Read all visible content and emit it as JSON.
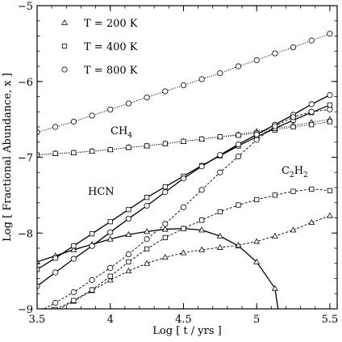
{
  "chart_data": {
    "type": "line",
    "xlabel": "Log [ t / yrs ]",
    "ylabel": "Log [ Fractional Abundance, x ]",
    "xlim": [
      3.5,
      5.55
    ],
    "ylim": [
      -9,
      -5
    ],
    "xticks": [
      3.5,
      4,
      4.5,
      5,
      5.5
    ],
    "xtick_labels": [
      "3.5",
      "4",
      "4.5",
      "5",
      "5.5"
    ],
    "yticks": [
      -9,
      -8,
      -7,
      -6,
      -5
    ],
    "ytick_labels": [
      "−9",
      "−8",
      "−7",
      "−6",
      "−5"
    ],
    "legend": {
      "placement": "top-left",
      "entries": [
        {
          "marker": "triangle",
          "label": "T = 200 K"
        },
        {
          "marker": "square",
          "label": "T = 400 K"
        },
        {
          "marker": "circle",
          "label": "T = 800 K"
        }
      ]
    },
    "annotations": [
      {
        "base": "CH",
        "sub": "4",
        "x": 3.51,
        "y": -6.78
      },
      {
        "base": "HCN",
        "sub": "",
        "x": 3.88,
        "y": -7.55
      },
      {
        "base": "C",
        "sub": "2",
        "base2": "H",
        "sub2": "2",
        "x": 5.18,
        "y": -7.35
      }
    ],
    "series": [
      {
        "molecule": "CH4",
        "temperature": "200 K",
        "marker": "triangle",
        "style": "dotted",
        "x": [
          3.5,
          3.625,
          3.75,
          3.875,
          4.0,
          4.125,
          4.25,
          4.375,
          4.5,
          4.625,
          4.75,
          4.875,
          5.0,
          5.125,
          5.25,
          5.375,
          5.5
        ],
        "y": [
          -6.97,
          -6.95,
          -6.94,
          -6.92,
          -6.9,
          -6.87,
          -6.85,
          -6.82,
          -6.79,
          -6.76,
          -6.73,
          -6.7,
          -6.66,
          -6.62,
          -6.58,
          -6.54,
          -6.5
        ]
      },
      {
        "molecule": "CH4",
        "temperature": "400 K",
        "marker": "square",
        "style": "dotted",
        "x": [
          3.5,
          3.625,
          3.75,
          3.875,
          4.0,
          4.125,
          4.25,
          4.375,
          4.5,
          4.625,
          4.75,
          4.875,
          5.0,
          5.125,
          5.25,
          5.375,
          5.5
        ],
        "y": [
          -6.97,
          -6.95,
          -6.94,
          -6.92,
          -6.9,
          -6.87,
          -6.85,
          -6.82,
          -6.79,
          -6.76,
          -6.73,
          -6.71,
          -6.68,
          -6.64,
          -6.6,
          -6.57,
          -6.53
        ]
      },
      {
        "molecule": "CH4",
        "temperature": "800 K",
        "marker": "circle",
        "style": "dotted",
        "x": [
          3.5,
          3.625,
          3.75,
          3.875,
          4.0,
          4.125,
          4.25,
          4.375,
          4.5,
          4.625,
          4.75,
          4.875,
          5.0,
          5.125,
          5.25,
          5.375,
          5.5
        ],
        "y": [
          -6.67,
          -6.6,
          -6.53,
          -6.45,
          -6.37,
          -6.29,
          -6.21,
          -6.13,
          -6.05,
          -5.97,
          -5.89,
          -5.8,
          -5.72,
          -5.63,
          -5.55,
          -5.46,
          -5.37
        ]
      },
      {
        "molecule": "HCN",
        "temperature": "200 K",
        "marker": "triangle",
        "style": "solid",
        "x": [
          3.5,
          3.625,
          3.75,
          3.875,
          4.0,
          4.125,
          4.25,
          4.375,
          4.5,
          4.625,
          4.75,
          4.875,
          5.0,
          5.125
        ],
        "y": [
          -8.38,
          -8.3,
          -8.22,
          -8.15,
          -8.08,
          -8.02,
          -7.98,
          -7.95,
          -7.94,
          -7.96,
          -8.04,
          -8.17,
          -8.38,
          -8.73
        ]
      },
      {
        "molecule": "HCN",
        "temperature": "400 K",
        "marker": "square",
        "style": "solid",
        "x": [
          3.5,
          3.625,
          3.75,
          3.875,
          4.0,
          4.125,
          4.25,
          4.375,
          4.5,
          4.625,
          4.75,
          4.875,
          5.0,
          5.125,
          5.25,
          5.375,
          5.5
        ],
        "y": [
          -8.48,
          -8.33,
          -8.17,
          -8.01,
          -7.85,
          -7.69,
          -7.53,
          -7.39,
          -7.25,
          -7.11,
          -6.98,
          -6.85,
          -6.73,
          -6.62,
          -6.51,
          -6.41,
          -6.31
        ]
      },
      {
        "molecule": "HCN",
        "temperature": "800 K",
        "marker": "circle",
        "style": "solid",
        "x": [
          3.5,
          3.625,
          3.75,
          3.875,
          4.0,
          4.125,
          4.25,
          4.375,
          4.5,
          4.625,
          4.75,
          4.875,
          5.0,
          5.125,
          5.25,
          5.375,
          5.5
        ],
        "y": [
          -8.7,
          -8.52,
          -8.34,
          -8.17,
          -7.99,
          -7.81,
          -7.64,
          -7.46,
          -7.28,
          -7.12,
          -6.97,
          -6.83,
          -6.7,
          -6.57,
          -6.44,
          -6.3,
          -6.18
        ]
      },
      {
        "molecule": "C2H2",
        "temperature": "200 K",
        "marker": "triangle",
        "style": "dashed",
        "x": [
          3.5,
          3.625,
          3.75,
          3.875,
          4.0,
          4.125,
          4.25,
          4.375,
          4.5,
          4.625,
          4.75,
          4.875,
          5.0,
          5.125,
          5.25,
          5.375,
          5.5
        ],
        "y": [
          -9.15,
          -9.03,
          -8.9,
          -8.76,
          -8.62,
          -8.5,
          -8.4,
          -8.32,
          -8.26,
          -8.22,
          -8.19,
          -8.16,
          -8.11,
          -8.04,
          -7.96,
          -7.86,
          -7.77
        ]
      },
      {
        "molecule": "C2H2",
        "temperature": "400 K",
        "marker": "square",
        "style": "dashed",
        "x": [
          3.5,
          3.625,
          3.75,
          3.875,
          4.0,
          4.125,
          4.25,
          4.375,
          4.5,
          4.625,
          4.75,
          4.875,
          5.0,
          5.125,
          5.25,
          5.375,
          5.5
        ],
        "y": [
          -9.1,
          -9.01,
          -8.89,
          -8.75,
          -8.57,
          -8.38,
          -8.21,
          -8.06,
          -7.94,
          -7.83,
          -7.72,
          -7.63,
          -7.56,
          -7.5,
          -7.45,
          -7.42,
          -7.44
        ]
      },
      {
        "molecule": "C2H2",
        "temperature": "800 K",
        "marker": "circle",
        "style": "dashed",
        "x": [
          3.5,
          3.625,
          3.75,
          3.875,
          4.0,
          4.125,
          4.25,
          4.375,
          4.5,
          4.625,
          4.75,
          4.875,
          5.0,
          5.125,
          5.25,
          5.375,
          5.5
        ],
        "y": [
          -9.05,
          -8.92,
          -8.78,
          -8.62,
          -8.46,
          -8.28,
          -8.08,
          -7.88,
          -7.66,
          -7.43,
          -7.2,
          -6.99,
          -6.77,
          -6.59,
          -6.47,
          -6.4,
          -6.37
        ]
      }
    ]
  }
}
